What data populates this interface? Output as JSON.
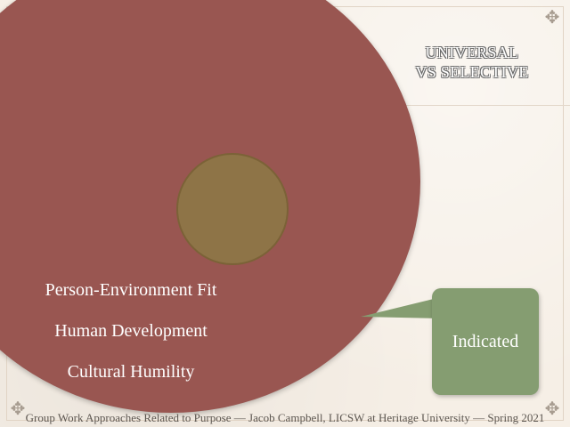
{
  "slide": {
    "title_lines": [
      "UNIVERSAL",
      "VS SELECTIVE"
    ],
    "left_list": [
      "Person-Environment Fit",
      "Human Development",
      "Cultural Humility"
    ],
    "indicated_label": "Indicated",
    "footer": "Group Work Approaches Related to Purpose — Jacob Campbell, LICSW at Heritage University — Spring 2021"
  },
  "colors": {
    "background": "#f6efe6",
    "big_ellipse": "#995651",
    "inner_circle": "#8e7447",
    "indicated_box": "#859d71",
    "text_light": "#ffffff",
    "footer_text": "#5d5751"
  },
  "icons": {
    "corner_ornament": "flourish-icon"
  }
}
